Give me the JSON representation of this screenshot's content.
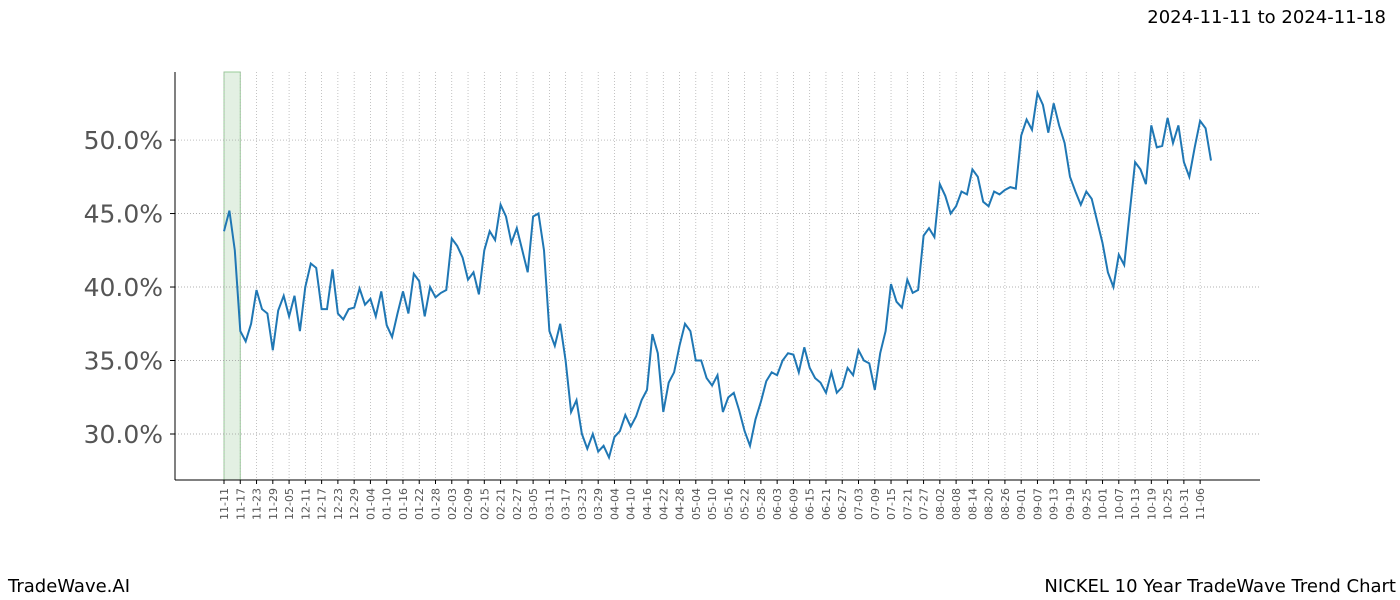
{
  "header": {
    "date_range": "2024-11-11 to 2024-11-18"
  },
  "footer": {
    "brand": "TradeWave.AI",
    "chart_name": "NICKEL 10 Year TradeWave Trend Chart"
  },
  "chart_data": {
    "type": "line",
    "color": "#1f77b4",
    "grid": true,
    "highlight": {
      "from": 0,
      "to": 3,
      "color": "#e3f0e3"
    },
    "ylim": [
      26.87,
      54.63
    ],
    "yticks": [
      {
        "value": 30,
        "label": "30.0%"
      },
      {
        "value": 35,
        "label": "35.0%"
      },
      {
        "value": 40,
        "label": "40.0%"
      },
      {
        "value": 45,
        "label": "45.0%"
      },
      {
        "value": 50,
        "label": "50.0%"
      }
    ],
    "categories": [
      "11-11",
      null,
      null,
      "11-17",
      null,
      null,
      "11-23",
      null,
      null,
      "11-29",
      null,
      null,
      "12-05",
      null,
      null,
      "12-11",
      null,
      null,
      "12-17",
      null,
      null,
      "12-23",
      null,
      null,
      "12-29",
      null,
      null,
      "01-04",
      null,
      null,
      "01-10",
      null,
      null,
      "01-16",
      null,
      null,
      "01-22",
      null,
      null,
      "01-28",
      null,
      null,
      "02-03",
      null,
      null,
      "02-09",
      null,
      null,
      "02-15",
      null,
      null,
      "02-21",
      null,
      null,
      "02-27",
      null,
      null,
      "03-05",
      null,
      null,
      "03-11",
      null,
      null,
      "03-17",
      null,
      null,
      "03-23",
      null,
      null,
      "03-29",
      null,
      null,
      "04-04",
      null,
      null,
      "04-10",
      null,
      null,
      "04-16",
      null,
      null,
      "04-22",
      null,
      null,
      "04-28",
      null,
      null,
      "05-04",
      null,
      null,
      "05-10",
      null,
      null,
      "05-16",
      null,
      null,
      "05-22",
      null,
      null,
      "05-28",
      null,
      null,
      "06-03",
      null,
      null,
      "06-09",
      null,
      null,
      "06-15",
      null,
      null,
      "06-21",
      null,
      null,
      "06-27",
      null,
      null,
      "07-03",
      null,
      null,
      "07-09",
      null,
      null,
      "07-15",
      null,
      null,
      "07-21",
      null,
      null,
      "07-27",
      null,
      null,
      "08-02",
      null,
      null,
      "08-08",
      null,
      null,
      "08-14",
      null,
      null,
      "08-20",
      null,
      null,
      "08-26",
      null,
      null,
      "09-01",
      null,
      null,
      "09-07",
      null,
      null,
      "09-13",
      null,
      null,
      "09-19",
      null,
      null,
      "09-25",
      null,
      null,
      "10-01",
      null,
      null,
      "10-07",
      null,
      null,
      "10-13",
      null,
      null,
      "10-19",
      null,
      null,
      "10-25",
      null,
      null,
      "10-31",
      null,
      null,
      "11-06",
      null,
      null
    ],
    "values": [
      43.8,
      45.2,
      42.5,
      37.0,
      36.3,
      37.5,
      39.8,
      38.5,
      38.2,
      35.7,
      38.4,
      39.4,
      38.0,
      39.4,
      37.0,
      40.0,
      41.6,
      41.3,
      38.5,
      38.5,
      41.2,
      38.2,
      37.8,
      38.5,
      38.6,
      39.9,
      38.8,
      39.2,
      38.0,
      39.7,
      37.4,
      36.6,
      38.2,
      39.7,
      38.2,
      40.9,
      40.4,
      38.0,
      40.0,
      39.3,
      39.6,
      39.8,
      43.3,
      42.8,
      42.0,
      40.5,
      41.0,
      39.5,
      42.5,
      43.8,
      43.2,
      45.6,
      44.8,
      43.0,
      44.0,
      42.5,
      41.0,
      44.8,
      45.0,
      42.5,
      37.0,
      36.0,
      37.5,
      35.0,
      31.5,
      32.3,
      30.0,
      29.0,
      30.0,
      28.8,
      29.2,
      28.4,
      29.8,
      30.2,
      31.3,
      30.5,
      31.2,
      32.3,
      33.0,
      36.8,
      35.5,
      31.5,
      33.5,
      34.2,
      36.0,
      37.5,
      37.0,
      35.0,
      35.0,
      33.8,
      33.3,
      34.0,
      31.5,
      32.5,
      32.8,
      31.6,
      30.2,
      29.2,
      31.0,
      32.2,
      33.6,
      34.2,
      34.0,
      35.0,
      35.5,
      35.4,
      34.2,
      35.9,
      34.5,
      33.8,
      33.5,
      32.8,
      34.2,
      32.8,
      33.2,
      34.5,
      34.0,
      35.7,
      35.0,
      34.8,
      33.0,
      35.5,
      37.0,
      40.2,
      39.0,
      38.6,
      40.5,
      39.6,
      39.8,
      43.5,
      44.0,
      43.4,
      47.0,
      46.2,
      45.0,
      45.5,
      46.5,
      46.3,
      48.0,
      47.5,
      45.8,
      45.5,
      46.5,
      46.3,
      46.6,
      46.8,
      46.7,
      50.3,
      51.4,
      50.7,
      53.2,
      52.4,
      50.5,
      52.5,
      51.0,
      49.8,
      47.5,
      46.5,
      45.6,
      46.5,
      46.0,
      44.5,
      43.0,
      41.0,
      40.0,
      42.2,
      41.5,
      45.0,
      48.5,
      48.0,
      47.0,
      51.0,
      49.5,
      49.6,
      51.5,
      49.8,
      51.0,
      48.5,
      47.5,
      49.5,
      51.3,
      50.8,
      48.6
    ]
  }
}
